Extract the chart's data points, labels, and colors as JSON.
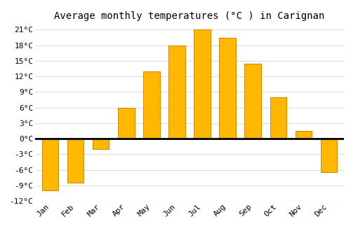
{
  "title": "Average monthly temperatures (°C ) in Carignan",
  "months": [
    "Jan",
    "Feb",
    "Mar",
    "Apr",
    "May",
    "Jun",
    "Jul",
    "Aug",
    "Sep",
    "Oct",
    "Nov",
    "Dec"
  ],
  "values": [
    -10,
    -8.5,
    -2,
    6,
    13,
    18,
    21,
    19.5,
    14.5,
    8,
    1.5,
    -6.5
  ],
  "bar_color_top": "#FFB700",
  "bar_color_bottom": "#FFA500",
  "bar_edge_color": "#CC8800",
  "background_color": "#FFFFFF",
  "grid_color": "#DDDDDD",
  "ylim": [
    -12,
    22
  ],
  "yticks": [
    -12,
    -9,
    -6,
    -3,
    0,
    3,
    6,
    9,
    12,
    15,
    18,
    21
  ],
  "ylabel_suffix": "°C",
  "zero_line_color": "#000000",
  "title_fontsize": 10,
  "tick_fontsize": 8
}
